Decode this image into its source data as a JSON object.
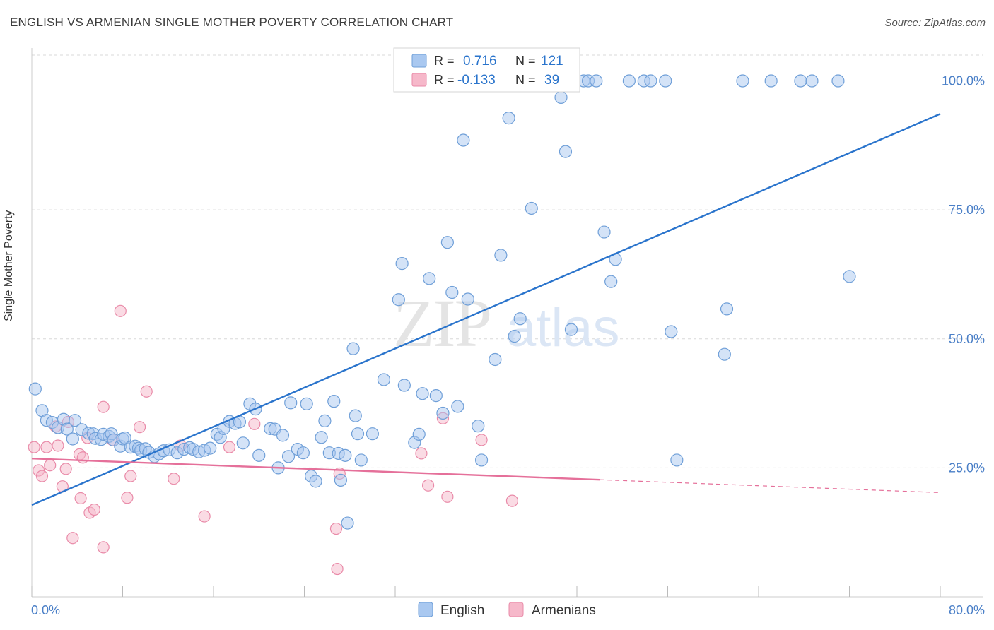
{
  "title": "ENGLISH VS ARMENIAN SINGLE MOTHER POVERTY CORRELATION CHART",
  "source": "Source: ZipAtlas.com",
  "watermark": {
    "zip": "ZIP",
    "atlas": "atlas"
  },
  "colors": {
    "english": "#a9c8f0",
    "english_stroke": "#6f9fd8",
    "english_line": "#2a74cc",
    "armenian": "#f6b8ca",
    "armenian_stroke": "#e98aa8",
    "armenian_line": "#e5709a",
    "axis_text": "#4a7fc7",
    "grid": "#d8d8d8"
  },
  "legend_top": [
    {
      "r_label": "R =",
      "r_value": "0.716",
      "n_label": "N =",
      "n_value": "121"
    },
    {
      "r_label": "R =",
      "r_value": "-0.133",
      "n_label": "N =",
      "n_value": "39"
    }
  ],
  "legend_bottom": [
    "English",
    "Armenians"
  ],
  "chart_data": {
    "type": "scatter",
    "title": "ENGLISH VS ARMENIAN SINGLE MOTHER POVERTY CORRELATION CHART",
    "xlabel": "",
    "ylabel": "Single Mother Poverty",
    "xlim": [
      0,
      80
    ],
    "ylim": [
      0,
      105
    ],
    "x_tick_labels": [
      "0.0%",
      "80.0%"
    ],
    "y_tick_labels": [
      "25.0%",
      "50.0%",
      "75.0%",
      "100.0%"
    ],
    "y_ticks": [
      25,
      50,
      75,
      100
    ],
    "grid": true,
    "legend_position": "top-center",
    "series": [
      {
        "name": "English",
        "points": [
          [
            0.3,
            40.3
          ],
          [
            0.9,
            36.1
          ],
          [
            1.3,
            34.2
          ],
          [
            1.8,
            33.8
          ],
          [
            2.3,
            32.8
          ],
          [
            2.8,
            34.4
          ],
          [
            3.1,
            32.5
          ],
          [
            3.8,
            34.2
          ],
          [
            3.6,
            30.6
          ],
          [
            4.4,
            32.4
          ],
          [
            5.0,
            31.7
          ],
          [
            5.4,
            31.6
          ],
          [
            5.6,
            30.7
          ],
          [
            6.1,
            30.5
          ],
          [
            6.3,
            31.5
          ],
          [
            6.8,
            31.1
          ],
          [
            7.0,
            31.6
          ],
          [
            7.2,
            30.4
          ],
          [
            7.8,
            29.2
          ],
          [
            8.0,
            30.6
          ],
          [
            8.2,
            30.8
          ],
          [
            8.7,
            29.0
          ],
          [
            9.1,
            29.2
          ],
          [
            9.4,
            28.8
          ],
          [
            9.6,
            28.4
          ],
          [
            10.0,
            28.7
          ],
          [
            10.3,
            28.0
          ],
          [
            10.8,
            27.2
          ],
          [
            11.2,
            27.7
          ],
          [
            11.6,
            28.3
          ],
          [
            12.1,
            28.5
          ],
          [
            12.8,
            27.9
          ],
          [
            13.4,
            28.6
          ],
          [
            13.9,
            28.9
          ],
          [
            14.2,
            28.6
          ],
          [
            14.7,
            28.1
          ],
          [
            15.2,
            28.4
          ],
          [
            15.7,
            28.8
          ],
          [
            16.3,
            31.5
          ],
          [
            16.6,
            30.9
          ],
          [
            16.9,
            32.6
          ],
          [
            17.4,
            34.0
          ],
          [
            17.9,
            33.6
          ],
          [
            18.3,
            33.9
          ],
          [
            18.6,
            29.8
          ],
          [
            19.2,
            37.4
          ],
          [
            19.7,
            36.4
          ],
          [
            20.0,
            27.4
          ],
          [
            21.0,
            32.6
          ],
          [
            21.4,
            32.5
          ],
          [
            21.7,
            25.0
          ],
          [
            22.1,
            31.3
          ],
          [
            22.6,
            27.2
          ],
          [
            22.8,
            37.6
          ],
          [
            23.4,
            28.6
          ],
          [
            23.9,
            27.9
          ],
          [
            24.2,
            37.4
          ],
          [
            24.6,
            23.4
          ],
          [
            25.0,
            22.4
          ],
          [
            25.8,
            34.1
          ],
          [
            25.5,
            30.9
          ],
          [
            26.2,
            27.9
          ],
          [
            26.6,
            37.9
          ],
          [
            27.0,
            27.8
          ],
          [
            27.2,
            22.6
          ],
          [
            27.6,
            27.4
          ],
          [
            27.8,
            14.3
          ],
          [
            28.3,
            48.1
          ],
          [
            28.5,
            35.1
          ],
          [
            28.7,
            31.6
          ],
          [
            29.0,
            26.5
          ],
          [
            30.0,
            31.6
          ],
          [
            31.0,
            42.1
          ],
          [
            32.3,
            57.6
          ],
          [
            32.6,
            64.6
          ],
          [
            32.8,
            41.0
          ],
          [
            33.7,
            29.9
          ],
          [
            34.1,
            31.5
          ],
          [
            34.4,
            39.4
          ],
          [
            35.0,
            61.7
          ],
          [
            35.6,
            39.0
          ],
          [
            36.2,
            35.6
          ],
          [
            36.6,
            68.7
          ],
          [
            37.0,
            59.0
          ],
          [
            37.5,
            36.9
          ],
          [
            38.0,
            88.5
          ],
          [
            38.4,
            57.7
          ],
          [
            39.0,
            100
          ],
          [
            39.3,
            33.1
          ],
          [
            39.6,
            26.5
          ],
          [
            40.3,
            100
          ],
          [
            40.8,
            46.0
          ],
          [
            41.3,
            66.2
          ],
          [
            42.0,
            92.8
          ],
          [
            42.5,
            50.5
          ],
          [
            43.0,
            53.9
          ],
          [
            43.6,
            100
          ],
          [
            44.0,
            75.3
          ],
          [
            46.2,
            100
          ],
          [
            46.6,
            96.8
          ],
          [
            47.0,
            86.3
          ],
          [
            47.5,
            51.8
          ],
          [
            48.6,
            100
          ],
          [
            49.0,
            100
          ],
          [
            49.7,
            100
          ],
          [
            50.4,
            70.7
          ],
          [
            51.0,
            61.1
          ],
          [
            51.4,
            65.4
          ],
          [
            52.6,
            100
          ],
          [
            53.9,
            100
          ],
          [
            54.5,
            100
          ],
          [
            55.8,
            100
          ],
          [
            56.3,
            51.4
          ],
          [
            56.8,
            26.5
          ],
          [
            61.0,
            47.0
          ],
          [
            61.2,
            55.8
          ],
          [
            62.6,
            100
          ],
          [
            65.1,
            100
          ],
          [
            67.7,
            100
          ],
          [
            68.7,
            100
          ],
          [
            71.0,
            100
          ],
          [
            72.0,
            62.1
          ]
        ],
        "trend": {
          "x": [
            0,
            80
          ],
          "y": [
            17.8,
            93.6
          ]
        }
      },
      {
        "name": "Armenians",
        "points": [
          [
            0.2,
            29.0
          ],
          [
            0.6,
            24.5
          ],
          [
            0.9,
            23.4
          ],
          [
            1.3,
            29.0
          ],
          [
            1.6,
            25.5
          ],
          [
            2.1,
            33.0
          ],
          [
            2.3,
            29.3
          ],
          [
            2.7,
            21.4
          ],
          [
            3.0,
            24.8
          ],
          [
            3.2,
            33.9
          ],
          [
            3.6,
            11.4
          ],
          [
            4.2,
            27.6
          ],
          [
            4.5,
            27.0
          ],
          [
            4.3,
            19.1
          ],
          [
            4.9,
            30.8
          ],
          [
            5.1,
            16.3
          ],
          [
            5.5,
            16.9
          ],
          [
            6.3,
            36.8
          ],
          [
            6.3,
            9.6
          ],
          [
            7.1,
            30.4
          ],
          [
            7.8,
            55.4
          ],
          [
            8.4,
            19.2
          ],
          [
            8.7,
            23.4
          ],
          [
            9.5,
            32.9
          ],
          [
            10.1,
            39.8
          ],
          [
            12.5,
            22.9
          ],
          [
            13.1,
            29.3
          ],
          [
            15.2,
            15.6
          ],
          [
            17.4,
            29.0
          ],
          [
            19.6,
            33.5
          ],
          [
            26.8,
            13.2
          ],
          [
            26.9,
            5.4
          ],
          [
            27.1,
            23.9
          ],
          [
            34.3,
            27.8
          ],
          [
            34.9,
            21.6
          ],
          [
            36.2,
            34.6
          ],
          [
            36.6,
            19.4
          ],
          [
            39.6,
            30.4
          ],
          [
            42.3,
            18.6
          ]
        ],
        "trend": {
          "x": [
            0,
            50
          ],
          "y": [
            26.8,
            22.7
          ]
        },
        "trend_dashed": {
          "x": [
            50,
            80
          ],
          "y": [
            22.7,
            20.2
          ]
        }
      }
    ]
  }
}
